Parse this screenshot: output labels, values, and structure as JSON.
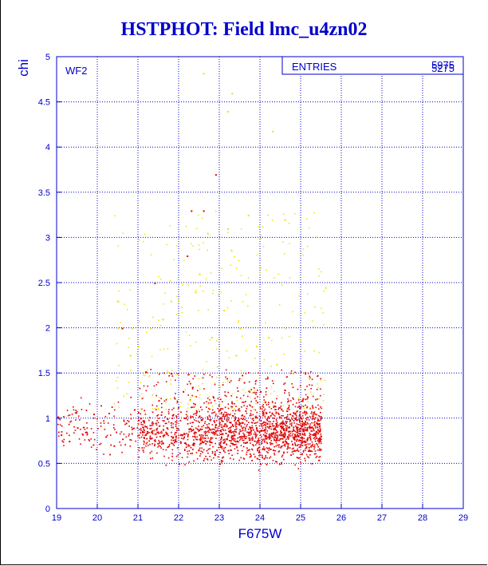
{
  "chart_data": {
    "type": "scatter",
    "title": "HSTPHOT: Field lmc_u4zn02",
    "xlabel": "F675W",
    "ylabel": "chi",
    "panel_label": "WF2",
    "stats_box": {
      "label": "ENTRIES",
      "values": [
        "5975",
        "5275"
      ]
    },
    "xlim": [
      19,
      29
    ],
    "ylim": [
      0,
      5
    ],
    "xticks": [
      "19",
      "20",
      "21",
      "22",
      "23",
      "24",
      "25",
      "26",
      "27",
      "28",
      "29"
    ],
    "yticks": [
      "0",
      "0.5",
      "1",
      "1.5",
      "2",
      "2.5",
      "3",
      "3.5",
      "4",
      "4.5",
      "5"
    ],
    "grid": true,
    "colors": {
      "axis": "#0000cc",
      "series_main": "#e00000",
      "series_secondary": "#f0e000"
    },
    "series": [
      {
        "color": "#e00000",
        "count": 5275,
        "points": [
          [
            19.1,
            0.82
          ],
          [
            19.3,
            0.75
          ],
          [
            19.5,
            0.9
          ],
          [
            19.7,
            0.85
          ],
          [
            19.9,
            1.05
          ],
          [
            20.2,
            0.8
          ],
          [
            20.4,
            0.7
          ],
          [
            20.7,
            0.95
          ],
          [
            20.9,
            1.1
          ],
          [
            21.1,
            0.85
          ],
          [
            21.3,
            0.78
          ],
          [
            21.5,
            1.2
          ],
          [
            21.7,
            0.9
          ],
          [
            21.9,
            0.75
          ],
          [
            22.1,
            1.3
          ],
          [
            22.3,
            0.88
          ],
          [
            22.5,
            0.82
          ],
          [
            22.7,
            1.0
          ],
          [
            22.9,
            0.86
          ],
          [
            23.1,
            0.92
          ],
          [
            23.3,
            0.8
          ],
          [
            23.5,
            0.95
          ],
          [
            23.7,
            0.85
          ],
          [
            23.9,
            0.9
          ],
          [
            24.1,
            0.88
          ],
          [
            24.3,
            0.84
          ],
          [
            24.5,
            0.92
          ],
          [
            24.7,
            0.86
          ],
          [
            24.9,
            0.9
          ],
          [
            25.1,
            0.88
          ],
          [
            25.3,
            0.82
          ],
          [
            25.45,
            0.78
          ],
          [
            22.6,
            3.3
          ],
          [
            22.9,
            3.7
          ],
          [
            22.3,
            3.3
          ],
          [
            22.2,
            2.8
          ],
          [
            20.6,
            2.0
          ],
          [
            21.4,
            2.5
          ],
          [
            21.8,
            1.5
          ],
          [
            23.6,
            1.4
          ],
          [
            24.0,
            1.3
          ],
          [
            22.0,
            0.5
          ],
          [
            23.0,
            0.5
          ],
          [
            24.0,
            0.5
          ]
        ]
      },
      {
        "color": "#f0e000",
        "count": 700,
        "points": [
          [
            22.6,
            4.82
          ],
          [
            23.3,
            4.6
          ],
          [
            24.3,
            4.18
          ],
          [
            23.2,
            4.4
          ],
          [
            24.6,
            3.2
          ],
          [
            23.7,
            3.25
          ],
          [
            22.7,
            3.05
          ],
          [
            23.2,
            3.1
          ],
          [
            21.8,
            2.3
          ],
          [
            22.4,
            2.4
          ],
          [
            23.1,
            2.2
          ],
          [
            23.5,
            2.0
          ],
          [
            24.2,
            1.9
          ],
          [
            20.5,
            2.3
          ],
          [
            21.0,
            1.8
          ],
          [
            21.6,
            2.1
          ],
          [
            22.8,
            1.9
          ],
          [
            23.9,
            1.8
          ],
          [
            24.4,
            1.6
          ],
          [
            25.2,
            1.45
          ],
          [
            22.0,
            1.7
          ],
          [
            22.5,
            2.6
          ],
          [
            23.4,
            1.7
          ],
          [
            24.8,
            1.5
          ],
          [
            21.3,
            2.0
          ],
          [
            25.6,
            2.45
          ],
          [
            20.8,
            1.7
          ]
        ]
      }
    ]
  }
}
